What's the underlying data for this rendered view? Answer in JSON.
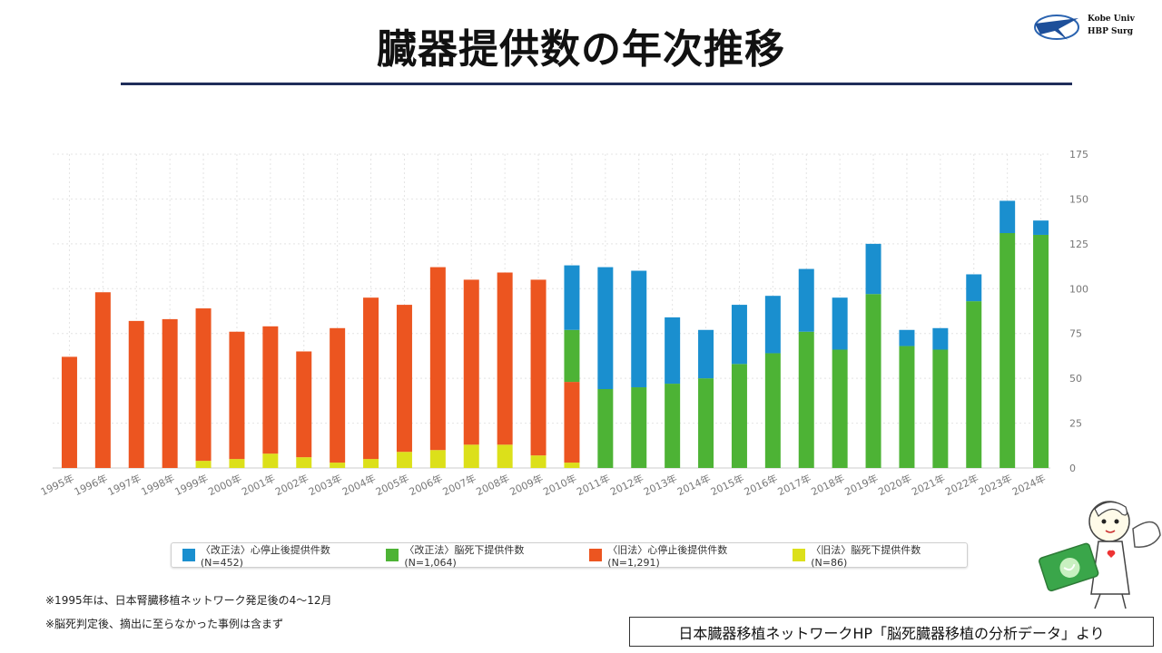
{
  "page": {
    "title": "臓器提供数の年次推移",
    "logo_line1": "Kobe Univ",
    "logo_line2": "HBP Surg",
    "note1": "※1995年は、日本腎臓移植ネットワーク発足後の4～12月",
    "note2": "※脳死判定後、摘出に至らなかった事例は含まず",
    "source": "日本臓器移植ネットワークHP「脳死臓器移植の分析データ」より"
  },
  "colors": {
    "new_cardiac": "#1a8fcf",
    "new_brain": "#4db335",
    "old_cardiac": "#ec5520",
    "old_brain": "#dce01a",
    "grid": "#e4e4e4",
    "axis_text": "#777777"
  },
  "chart_data": {
    "type": "bar",
    "stacked": true,
    "title": "",
    "xlabel": "",
    "ylabel": "",
    "ylim": [
      0,
      175
    ],
    "yticks": [
      0,
      25,
      50,
      75,
      100,
      125,
      150,
      175
    ],
    "y_axis_position": "right",
    "categories": [
      "1995年",
      "1996年",
      "1997年",
      "1998年",
      "1999年",
      "2000年",
      "2001年",
      "2002年",
      "2003年",
      "2004年",
      "2005年",
      "2006年",
      "2007年",
      "2008年",
      "2009年",
      "2010年",
      "2011年",
      "2012年",
      "2013年",
      "2014年",
      "2015年",
      "2016年",
      "2017年",
      "2018年",
      "2019年",
      "2020年",
      "2021年",
      "2022年",
      "2023年",
      "2024年"
    ],
    "series": [
      {
        "name": "〈旧法〉脳死下提供件数(N=86)",
        "key": "old_brain",
        "values": [
          0,
          0,
          0,
          0,
          4,
          5,
          8,
          6,
          3,
          5,
          9,
          10,
          13,
          13,
          7,
          3,
          0,
          0,
          0,
          0,
          0,
          0,
          0,
          0,
          0,
          0,
          0,
          0,
          0,
          0
        ]
      },
      {
        "name": "〈旧法〉心停止後提供件数(N=1,291)",
        "key": "old_cardiac",
        "values": [
          62,
          98,
          82,
          83,
          85,
          71,
          71,
          59,
          75,
          90,
          82,
          102,
          92,
          96,
          98,
          45,
          0,
          0,
          0,
          0,
          0,
          0,
          0,
          0,
          0,
          0,
          0,
          0,
          0,
          0
        ]
      },
      {
        "name": "〈改正法〉脳死下提供件数(N=1,064)",
        "key": "new_brain",
        "values": [
          0,
          0,
          0,
          0,
          0,
          0,
          0,
          0,
          0,
          0,
          0,
          0,
          0,
          0,
          0,
          29,
          44,
          45,
          47,
          50,
          58,
          64,
          76,
          66,
          97,
          68,
          66,
          93,
          131,
          130
        ]
      },
      {
        "name": "〈改正法〉心停止後提供件数(N=452)",
        "key": "new_cardiac",
        "values": [
          0,
          0,
          0,
          0,
          0,
          0,
          0,
          0,
          0,
          0,
          0,
          0,
          0,
          0,
          0,
          36,
          68,
          65,
          37,
          27,
          33,
          32,
          35,
          29,
          28,
          9,
          12,
          15,
          18,
          8
        ]
      }
    ],
    "legend": {
      "position": "bottom",
      "items": [
        {
          "label": "〈改正法〉心停止後提供件数(N=452)",
          "key": "new_cardiac"
        },
        {
          "label": "〈改正法〉脳死下提供件数(N=1,064)",
          "key": "new_brain"
        },
        {
          "label": "〈旧法〉心停止後提供件数(N=1,291)",
          "key": "old_cardiac"
        },
        {
          "label": "〈旧法〉脳死下提供件数(N=86)",
          "key": "old_brain"
        }
      ]
    }
  }
}
